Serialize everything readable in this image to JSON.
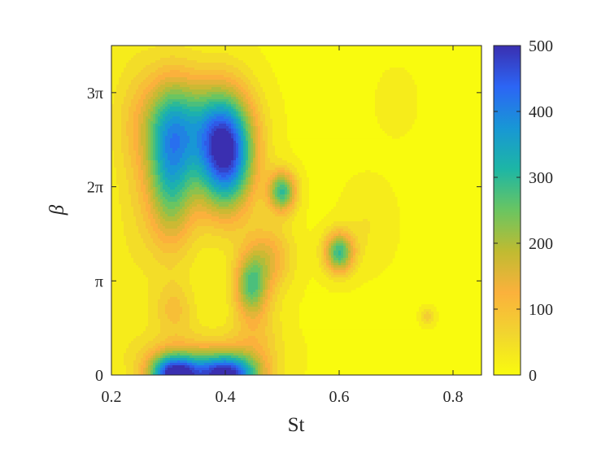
{
  "chart_data": {
    "type": "heatmap",
    "subtype": "filled-contour",
    "title": "",
    "xlabel": "St",
    "ylabel": "β",
    "xlim": [
      0.2,
      0.85
    ],
    "ylim": [
      0,
      3.5
    ],
    "ylim_unit": "π",
    "x_ticks": [
      0.2,
      0.4,
      0.6,
      0.8
    ],
    "x_tick_labels": [
      "0.2",
      "0.4",
      "0.6",
      "0.8"
    ],
    "y_ticks": [
      0,
      1,
      2,
      3
    ],
    "y_tick_labels": [
      "0",
      "π",
      "2π",
      "3π"
    ],
    "colorbar": {
      "range": [
        0,
        500
      ],
      "ticks": [
        0,
        100,
        200,
        300,
        400,
        500
      ],
      "tick_labels": [
        "0",
        "100",
        "200",
        "300",
        "400",
        "500"
      ],
      "colormap": "parula",
      "position": "right"
    },
    "contour_levels": [
      0,
      25,
      50,
      75,
      100,
      125,
      150,
      175,
      200,
      225,
      250,
      275,
      300,
      325,
      350,
      375,
      400,
      425,
      450,
      475,
      500
    ],
    "features": [
      {
        "st": 0.305,
        "beta_pi": 2.2,
        "value": 320,
        "sx": 0.03,
        "sy": 0.55
      },
      {
        "st": 0.4,
        "beta_pi": 2.35,
        "value": 500,
        "sx": 0.035,
        "sy": 0.42
      },
      {
        "st": 0.33,
        "beta_pi": 2.7,
        "value": 190,
        "sx": 0.06,
        "sy": 0.35
      },
      {
        "st": 0.5,
        "beta_pi": 1.95,
        "value": 300,
        "sx": 0.017,
        "sy": 0.15
      },
      {
        "st": 0.6,
        "beta_pi": 1.3,
        "value": 300,
        "sx": 0.018,
        "sy": 0.15
      },
      {
        "st": 0.445,
        "beta_pi": 0.95,
        "value": 240,
        "sx": 0.02,
        "sy": 0.22
      },
      {
        "st": 0.475,
        "beta_pi": 1.25,
        "value": 150,
        "sx": 0.03,
        "sy": 0.25
      },
      {
        "st": 0.31,
        "beta_pi": 0.0,
        "value": 500,
        "sx": 0.03,
        "sy": 0.15
      },
      {
        "st": 0.4,
        "beta_pi": 0.0,
        "value": 500,
        "sx": 0.04,
        "sy": 0.15
      },
      {
        "st": 0.31,
        "beta_pi": 0.7,
        "value": 100,
        "sx": 0.025,
        "sy": 0.2
      },
      {
        "st": 0.455,
        "beta_pi": 0.45,
        "value": 90,
        "sx": 0.03,
        "sy": 0.3
      },
      {
        "st": 0.7,
        "beta_pi": 2.9,
        "value": 50,
        "sx": 0.02,
        "sy": 0.2
      },
      {
        "st": 0.755,
        "beta_pi": 0.62,
        "value": 90,
        "sx": 0.008,
        "sy": 0.06
      },
      {
        "st": 0.24,
        "beta_pi": 2.2,
        "value": 60,
        "sx": 0.03,
        "sy": 1.0
      },
      {
        "st": 0.65,
        "beta_pi": 1.6,
        "value": 50,
        "sx": 0.03,
        "sy": 0.3
      },
      {
        "st": 0.35,
        "beta_pi": 0.2,
        "value": 100,
        "sx": 0.08,
        "sy": 0.2
      }
    ],
    "background_value": 20
  }
}
